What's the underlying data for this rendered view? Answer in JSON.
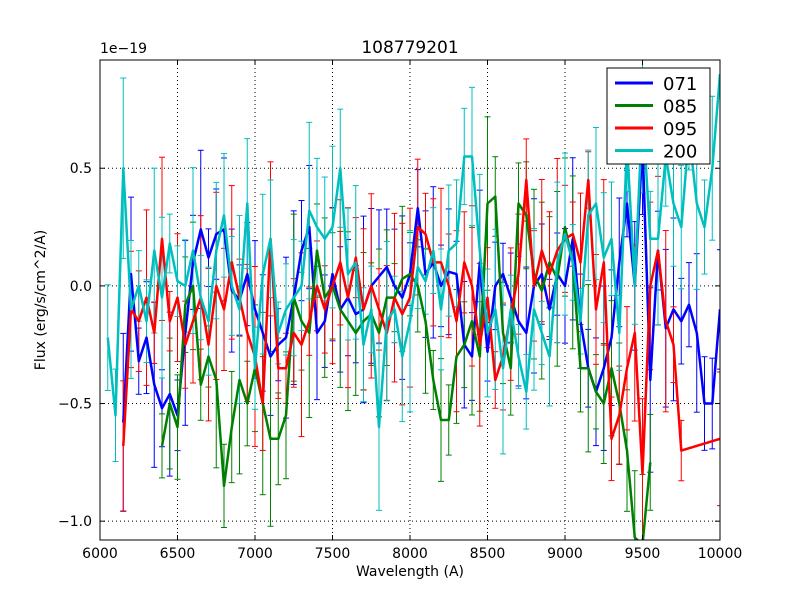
{
  "chart_data": {
    "type": "line",
    "title": "108779201",
    "xlabel": "Wavelength (A)",
    "ylabel": "Flux (erg/s/cm^2/A)",
    "offset_label": "1e−19",
    "xlim": [
      6000,
      10000
    ],
    "ylim": [
      -1.08,
      0.96
    ],
    "x_ticks": [
      6000,
      6500,
      7000,
      7500,
      8000,
      8500,
      9000,
      9500,
      10000
    ],
    "x_tick_labels": [
      "6000",
      "6500",
      "7000",
      "7500",
      "8000",
      "8500",
      "9000",
      "9500",
      "10000"
    ],
    "y_ticks": [
      -1.0,
      -0.5,
      0.0,
      0.5
    ],
    "y_tick_labels": [
      "−1.0",
      "−0.5",
      "0.0",
      "0.5"
    ],
    "grid": true,
    "legend_position": "top-right",
    "series": [
      {
        "name": "071",
        "color": "#0000ff",
        "x": [
          6150,
          6200,
          6250,
          6300,
          6350,
          6400,
          6450,
          6500,
          6550,
          6600,
          6650,
          6700,
          6750,
          6800,
          6850,
          6900,
          6950,
          7000,
          7050,
          7100,
          7150,
          7200,
          7250,
          7300,
          7350,
          7400,
          7450,
          7500,
          7550,
          7600,
          7650,
          7700,
          7750,
          7800,
          7850,
          7900,
          7950,
          8000,
          8050,
          8100,
          8150,
          8200,
          8250,
          8300,
          8350,
          8400,
          8450,
          8500,
          8550,
          8600,
          8650,
          8700,
          8750,
          8800,
          8850,
          8900,
          8950,
          9000,
          9050,
          9100,
          9150,
          9200,
          9250,
          9300,
          9350,
          9400,
          9450,
          9500,
          9550,
          9600,
          9650,
          9700,
          9750,
          9800,
          9850,
          9900,
          9950,
          10000
        ],
        "y": [
          -0.58,
          0.05,
          -0.32,
          -0.22,
          -0.42,
          -0.52,
          -0.46,
          -0.55,
          -0.2,
          0.1,
          0.24,
          0.12,
          0.22,
          0.24,
          -0.02,
          -0.06,
          0.05,
          -0.1,
          -0.2,
          -0.3,
          -0.25,
          -0.22,
          -0.05,
          0.15,
          0.25,
          -0.2,
          -0.15,
          0.05,
          -0.1,
          -0.05,
          -0.12,
          -0.1,
          0.0,
          0.04,
          0.08,
          0.0,
          -0.05,
          0.05,
          0.33,
          0.05,
          0.1,
          0.0,
          0.06,
          0.05,
          -0.25,
          -0.3,
          0.1,
          -0.28,
          0.0,
          0.05,
          -0.05,
          -0.15,
          -0.2,
          0.0,
          0.05,
          -0.1,
          0.05,
          0.0,
          0.2,
          -0.15,
          -0.35,
          -0.45,
          -0.35,
          -0.22,
          0.1,
          0.35,
          0.0,
          0.6,
          -0.4,
          0.15,
          -0.18,
          -0.1,
          -0.15,
          -0.08,
          -0.2,
          -0.5,
          -0.5,
          -0.1
        ]
      },
      {
        "name": "085",
        "color": "#008000",
        "x": [
          6400,
          6450,
          6500,
          6550,
          6600,
          6650,
          6700,
          6750,
          6800,
          6850,
          6900,
          6950,
          7000,
          7050,
          7100,
          7150,
          7200,
          7250,
          7300,
          7350,
          7400,
          7450,
          7500,
          7550,
          7600,
          7650,
          7700,
          7750,
          7800,
          7850,
          7900,
          7950,
          8000,
          8050,
          8100,
          8150,
          8200,
          8250,
          8300,
          8350,
          8400,
          8450,
          8500,
          8550,
          8600,
          8650,
          8700,
          8750,
          8800,
          8850,
          8900,
          8950,
          9000,
          9050,
          9100,
          9150,
          9200,
          9250,
          9300,
          9350,
          9400,
          9450,
          9500,
          9550
        ],
        "y": [
          -0.68,
          -0.5,
          -0.6,
          -0.08,
          0.0,
          -0.42,
          -0.3,
          -0.4,
          -0.85,
          -0.6,
          -0.4,
          -0.5,
          -0.35,
          -0.5,
          -0.65,
          -0.65,
          -0.55,
          -0.05,
          -0.15,
          -0.2,
          0.15,
          -0.05,
          0.0,
          -0.1,
          -0.15,
          -0.2,
          -0.15,
          -0.12,
          -0.2,
          -0.05,
          -0.05,
          0.03,
          0.05,
          0.0,
          -0.15,
          -0.4,
          -0.57,
          -0.57,
          -0.3,
          -0.25,
          -0.15,
          -0.3,
          0.35,
          0.38,
          -0.2,
          -0.35,
          0.35,
          0.3,
          0.05,
          -0.02,
          0.1,
          0.03,
          0.25,
          0.1,
          -0.35,
          -0.35,
          -0.45,
          -0.5,
          -0.35,
          -0.5,
          -0.7,
          -1.07,
          -1.1,
          -0.75
        ]
      },
      {
        "name": "095",
        "color": "#ff0000",
        "x": [
          6150,
          6200,
          6250,
          6300,
          6350,
          6400,
          6450,
          6500,
          6550,
          6600,
          6650,
          6700,
          6750,
          6800,
          6850,
          6900,
          6950,
          7000,
          7050,
          7100,
          7150,
          7200,
          7250,
          7300,
          7350,
          7400,
          7450,
          7500,
          7550,
          7600,
          7650,
          7700,
          7750,
          7800,
          7850,
          7900,
          7950,
          8000,
          8050,
          8100,
          8150,
          8200,
          8250,
          8300,
          8350,
          8400,
          8450,
          8500,
          8550,
          8600,
          8650,
          8700,
          8750,
          8800,
          8850,
          8900,
          8950,
          9000,
          9050,
          9100,
          9150,
          9200,
          9250,
          9300,
          9350,
          9400,
          9450,
          9500,
          9550,
          9600,
          9650,
          9700,
          9750,
          10000
        ],
        "y": [
          -0.68,
          -0.1,
          -0.15,
          -0.05,
          -0.2,
          0.2,
          -0.15,
          -0.05,
          -0.25,
          -0.15,
          -0.05,
          -0.25,
          0.0,
          -0.1,
          0.1,
          -0.05,
          -0.2,
          -0.3,
          -0.5,
          0.2,
          -0.35,
          -0.35,
          -0.2,
          -0.25,
          -0.15,
          0.0,
          -0.1,
          0.0,
          0.1,
          -0.05,
          0.12,
          -0.1,
          0.0,
          -0.1,
          -0.2,
          -0.05,
          -0.12,
          -0.05,
          0.25,
          0.22,
          0.1,
          0.1,
          0.0,
          -0.15,
          0.1,
          0.0,
          -0.25,
          -0.05,
          -0.4,
          -0.3,
          -0.12,
          0.05,
          0.45,
          0.0,
          0.15,
          0.05,
          0.15,
          0.2,
          0.22,
          0.1,
          0.45,
          -0.1,
          0.1,
          -0.65,
          -0.55,
          -0.35,
          -0.2,
          -0.8,
          0.0,
          0.15,
          -0.15,
          -0.25,
          -0.7,
          -0.65
        ]
      },
      {
        "name": "200",
        "color": "#00bfbf",
        "x": [
          6050,
          6100,
          6150,
          6200,
          6250,
          6300,
          6350,
          6400,
          6450,
          6500,
          6550,
          6600,
          6650,
          6700,
          6750,
          6800,
          6850,
          6900,
          6950,
          7000,
          7050,
          7100,
          7150,
          7200,
          7250,
          7300,
          7350,
          7400,
          7450,
          7500,
          7550,
          7600,
          7650,
          7700,
          7750,
          7800,
          7850,
          7900,
          7950,
          8000,
          8050,
          8100,
          8150,
          8200,
          8250,
          8300,
          8350,
          8400,
          8450,
          8500,
          8550,
          8600,
          8650,
          8700,
          8750,
          8800,
          8850,
          8900,
          8950,
          9000,
          9050,
          9100,
          9150,
          9200,
          9250,
          9300,
          9350,
          9400,
          9450,
          9500,
          9550,
          9600,
          9650,
          9700,
          9750,
          9800,
          9850,
          9900,
          9950,
          10000
        ],
        "y": [
          -0.22,
          -0.55,
          0.5,
          -0.1,
          0.0,
          -0.15,
          0.15,
          -0.05,
          0.18,
          0.02,
          0.0,
          0.15,
          -0.05,
          -0.15,
          0.15,
          0.3,
          0.0,
          -0.1,
          0.35,
          -0.35,
          0.05,
          0.2,
          -0.2,
          -0.1,
          -0.05,
          0.0,
          0.32,
          0.25,
          0.2,
          0.25,
          0.5,
          0.05,
          0.1,
          -0.25,
          -0.1,
          -0.6,
          -0.15,
          -0.1,
          -0.3,
          -0.15,
          0.08,
          0.02,
          0.15,
          -0.1,
          0.15,
          0.18,
          0.55,
          0.55,
          0.15,
          -0.2,
          -0.1,
          -0.35,
          -0.1,
          -0.3,
          -0.45,
          -0.1,
          -0.2,
          -0.3,
          0.1,
          0.22,
          0.1,
          -0.15,
          0.3,
          0.35,
          0.12,
          0.2,
          -0.2,
          0.6,
          0.0,
          0.75,
          0.2,
          0.2,
          0.55,
          0.35,
          0.25,
          0.65,
          0.35,
          0.25,
          0.5,
          0.9
        ]
      }
    ]
  }
}
